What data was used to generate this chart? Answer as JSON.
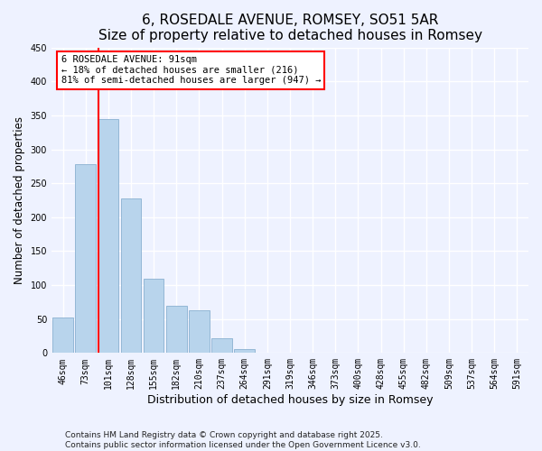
{
  "title": "6, ROSEDALE AVENUE, ROMSEY, SO51 5AR",
  "subtitle": "Size of property relative to detached houses in Romsey",
  "xlabel": "Distribution of detached houses by size in Romsey",
  "ylabel": "Number of detached properties",
  "bar_color": "#b8d4ec",
  "bar_edge_color": "#8ab0d0",
  "categories": [
    "46sqm",
    "73sqm",
    "101sqm",
    "128sqm",
    "155sqm",
    "182sqm",
    "210sqm",
    "237sqm",
    "264sqm",
    "291sqm",
    "319sqm",
    "346sqm",
    "373sqm",
    "400sqm",
    "428sqm",
    "455sqm",
    "482sqm",
    "509sqm",
    "537sqm",
    "564sqm",
    "591sqm"
  ],
  "values": [
    52,
    278,
    345,
    228,
    110,
    70,
    63,
    22,
    6,
    0,
    0,
    0,
    0,
    0,
    0,
    0,
    0,
    0,
    0,
    0,
    1
  ],
  "red_line_index": 2,
  "ylim": [
    0,
    450
  ],
  "yticks": [
    0,
    50,
    100,
    150,
    200,
    250,
    300,
    350,
    400,
    450
  ],
  "annotation_text_line1": "6 ROSEDALE AVENUE: 91sqm",
  "annotation_text_line2": "← 18% of detached houses are smaller (216)",
  "annotation_text_line3": "81% of semi-detached houses are larger (947) →",
  "footer_line1": "Contains HM Land Registry data © Crown copyright and database right 2025.",
  "footer_line2": "Contains public sector information licensed under the Open Government Licence v3.0.",
  "background_color": "#eef2ff",
  "grid_color": "#ffffff",
  "title_fontsize": 11,
  "tick_fontsize": 7,
  "footer_fontsize": 6.5,
  "xlabel_fontsize": 9,
  "ylabel_fontsize": 8.5
}
